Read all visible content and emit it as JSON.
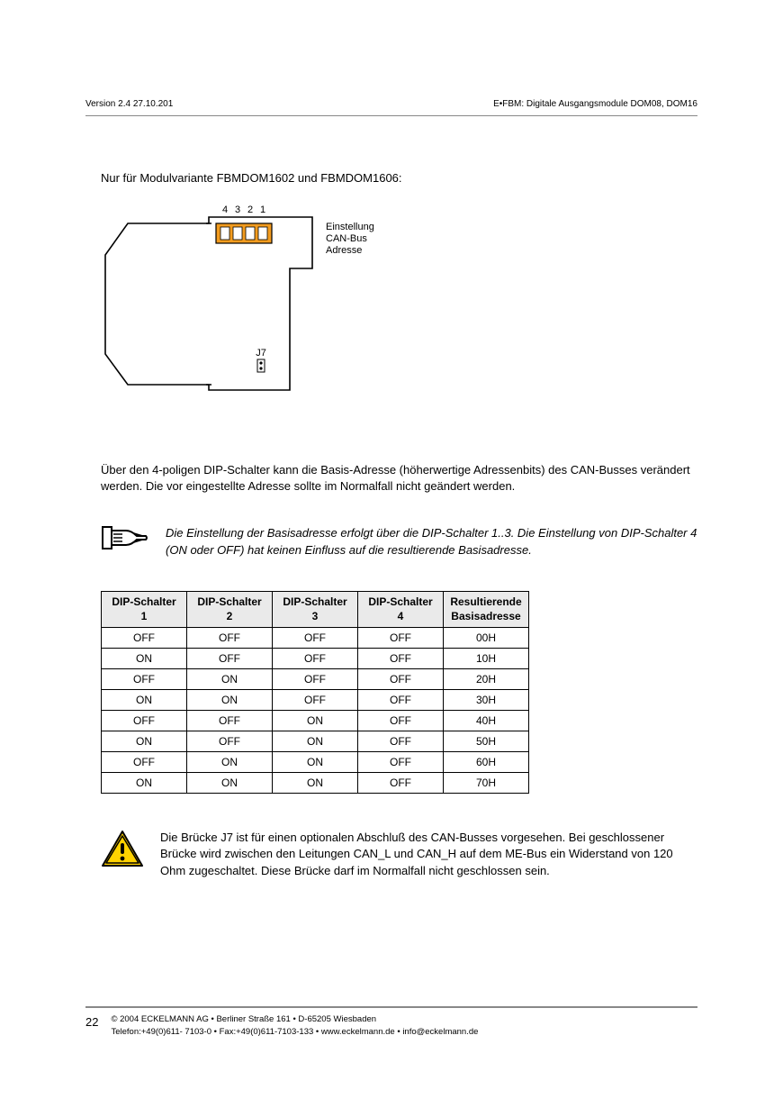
{
  "header": {
    "left": "Version 2.4   27.10.201",
    "right": "E•FBM: Digitale Ausgangsmodule DOM08, DOM16"
  },
  "intro": "Nur für Modulvariante FBMDOM1602 und FBMDOM1606:",
  "diagram": {
    "switch_labels": [
      "4",
      "3",
      "2",
      "1"
    ],
    "switch_color": "#f39c1f",
    "caption_line1": "Einstellung",
    "caption_line2": "CAN-Bus",
    "caption_line3": "Adresse",
    "jumper_label": "J7",
    "font_size": 11,
    "outline_color": "#000000"
  },
  "paragraph1": "Über den 4-poligen DIP-Schalter kann die Basis-Adresse (höherwertige Adressenbits) des CAN-Busses verändert werden. Die vor eingestellte Adresse sollte im Normalfall nicht geändert werden.",
  "note": "Die Einstellung der Basisadresse erfolgt über die DIP-Schalter 1..3. Die Einstellung von DIP-Schalter 4 (ON oder OFF) hat keinen Einfluss auf die resultierende Basisadresse.",
  "table": {
    "headers": [
      {
        "l1": "DIP-Schalter",
        "l2": "1"
      },
      {
        "l1": "DIP-Schalter",
        "l2": "2"
      },
      {
        "l1": "DIP-Schalter",
        "l2": "3"
      },
      {
        "l1": "DIP-Schalter",
        "l2": "4"
      },
      {
        "l1": "Resultierende",
        "l2": "Basisadresse"
      }
    ],
    "rows": [
      [
        "OFF",
        "OFF",
        "OFF",
        "OFF",
        "00H"
      ],
      [
        "ON",
        "OFF",
        "OFF",
        "OFF",
        "10H"
      ],
      [
        "OFF",
        "ON",
        "OFF",
        "OFF",
        "20H"
      ],
      [
        "ON",
        "ON",
        "OFF",
        "OFF",
        "30H"
      ],
      [
        "OFF",
        "OFF",
        "ON",
        "OFF",
        "40H"
      ],
      [
        "ON",
        "OFF",
        "ON",
        "OFF",
        "50H"
      ],
      [
        "OFF",
        "ON",
        "ON",
        "OFF",
        "60H"
      ],
      [
        "ON",
        "ON",
        "ON",
        "OFF",
        "70H"
      ]
    ],
    "header_bg": "#eaeaea",
    "border_color": "#000000"
  },
  "warning": "Die Brücke J7 ist für einen optionalen Abschluß des CAN-Busses vorgesehen. Bei geschlossener Brücke wird zwischen den Leitungen CAN_L und CAN_H auf dem ME-Bus ein Widerstand von 120 Ohm zugeschaltet. Diese Brücke darf im Normalfall nicht geschlossen sein.",
  "warning_icon": {
    "fill": "#ffd200",
    "stroke": "#000000"
  },
  "footer": {
    "page": "22",
    "line1": "©  2004 ECKELMANN AG • Berliner Straße 161 • D-65205 Wiesbaden",
    "line2": "Telefon:+49(0)611- 7103-0 • Fax:+49(0)611-7103-133 • www.eckelmann.de • info@eckelmann.de"
  }
}
